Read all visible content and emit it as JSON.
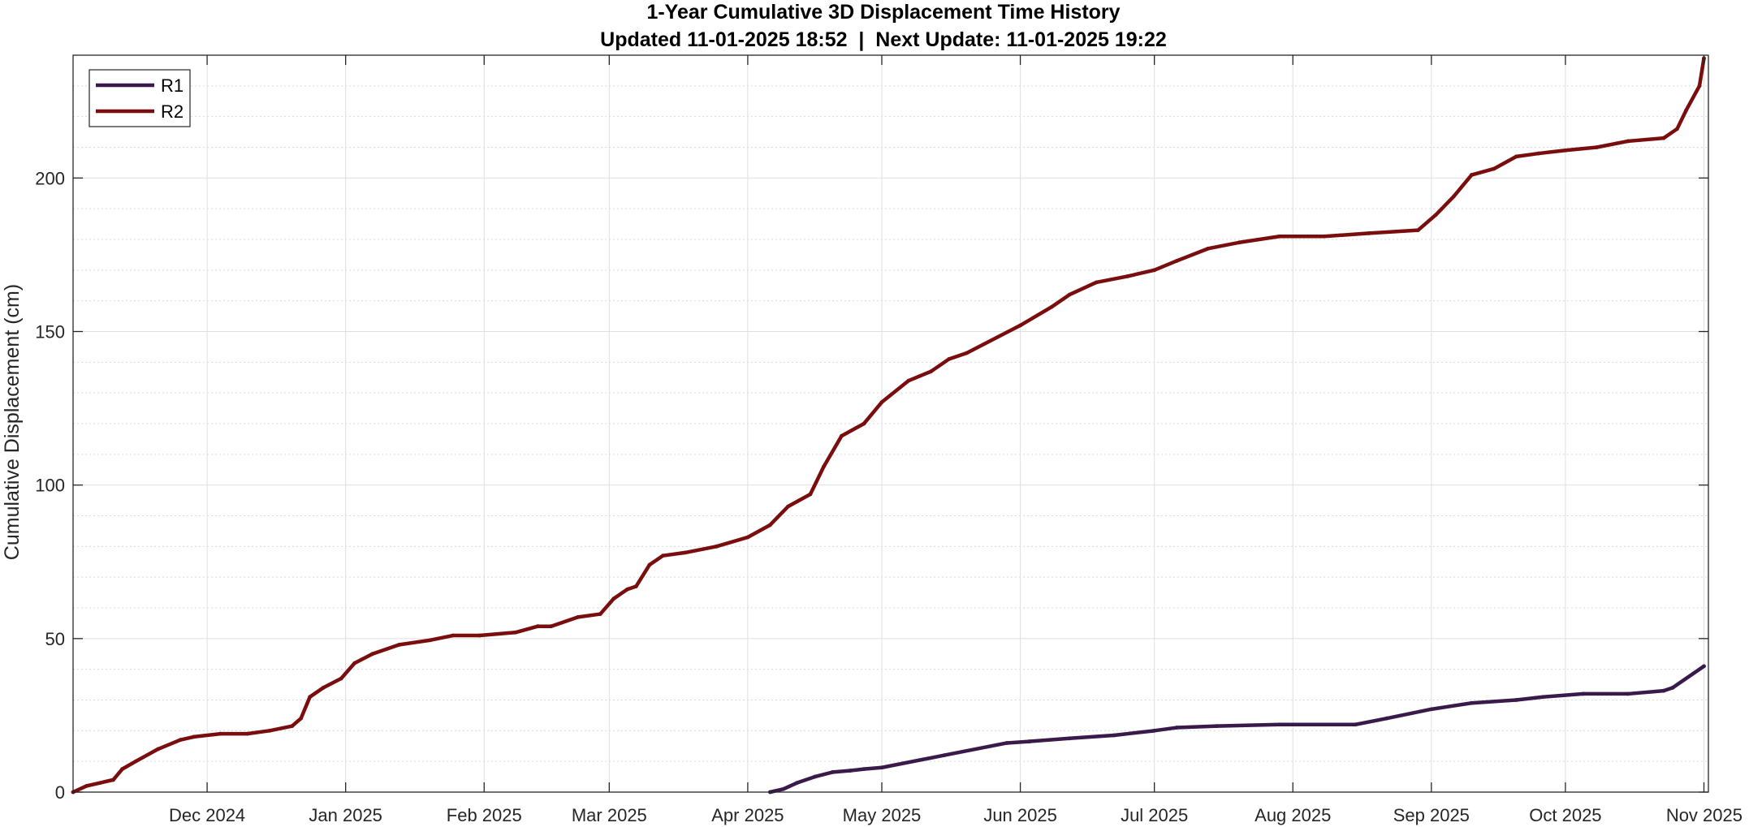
{
  "chart_data": {
    "type": "line",
    "title": "1-Year Cumulative 3D Displacement Time History",
    "subtitle": "Updated 11-01-2025 18:52  |  Next Update: 11-01-2025 19:22",
    "xlabel": "",
    "ylabel": "Cumulative Displacement (cm)",
    "xlim": [
      "2024-11-01",
      "2025-11-02"
    ],
    "ylim": [
      0,
      240
    ],
    "x_ticks": [
      {
        "date": "2024-12-01",
        "label": "Dec 2024"
      },
      {
        "date": "2025-01-01",
        "label": "Jan 2025"
      },
      {
        "date": "2025-02-01",
        "label": "Feb 2025"
      },
      {
        "date": "2025-03-01",
        "label": "Mar 2025"
      },
      {
        "date": "2025-04-01",
        "label": "Apr 2025"
      },
      {
        "date": "2025-05-01",
        "label": "May 2025"
      },
      {
        "date": "2025-06-01",
        "label": "Jun 2025"
      },
      {
        "date": "2025-07-01",
        "label": "Jul 2025"
      },
      {
        "date": "2025-08-01",
        "label": "Aug 2025"
      },
      {
        "date": "2025-09-01",
        "label": "Sep 2025"
      },
      {
        "date": "2025-10-01",
        "label": "Oct 2025"
      },
      {
        "date": "2025-11-01",
        "label": "Nov 2025"
      }
    ],
    "y_ticks": [
      0,
      50,
      100,
      150,
      200
    ],
    "y_minor_step": 10,
    "grid": true,
    "legend_position": "top-left",
    "series": [
      {
        "name": "R1",
        "color": "#3a1a4a",
        "points": [
          [
            "2025-04-06",
            0
          ],
          [
            "2025-04-09",
            1
          ],
          [
            "2025-04-12",
            3
          ],
          [
            "2025-04-16",
            5
          ],
          [
            "2025-04-20",
            6.5
          ],
          [
            "2025-04-24",
            7
          ],
          [
            "2025-04-27",
            7.5
          ],
          [
            "2025-05-01",
            8
          ],
          [
            "2025-05-15",
            12
          ],
          [
            "2025-05-29",
            16
          ],
          [
            "2025-06-03",
            16.5
          ],
          [
            "2025-06-12",
            17.5
          ],
          [
            "2025-06-22",
            18.5
          ],
          [
            "2025-07-01",
            20
          ],
          [
            "2025-07-06",
            21
          ],
          [
            "2025-07-15",
            21.5
          ],
          [
            "2025-07-29",
            22
          ],
          [
            "2025-08-15",
            22
          ],
          [
            "2025-08-22",
            24
          ],
          [
            "2025-09-01",
            27
          ],
          [
            "2025-09-10",
            29
          ],
          [
            "2025-09-20",
            30
          ],
          [
            "2025-09-26",
            31
          ],
          [
            "2025-10-05",
            32
          ],
          [
            "2025-10-15",
            32
          ],
          [
            "2025-10-23",
            33
          ],
          [
            "2025-10-25",
            34
          ],
          [
            "2025-11-01",
            41
          ]
        ]
      },
      {
        "name": "R2",
        "color": "#7a0d0d",
        "points": [
          [
            "2024-11-01",
            0
          ],
          [
            "2024-11-04",
            2
          ],
          [
            "2024-11-10",
            4
          ],
          [
            "2024-11-12",
            7.5
          ],
          [
            "2024-11-15",
            10
          ],
          [
            "2024-11-20",
            14
          ],
          [
            "2024-11-25",
            17
          ],
          [
            "2024-11-28",
            18
          ],
          [
            "2024-12-04",
            19
          ],
          [
            "2024-12-10",
            19
          ],
          [
            "2024-12-15",
            20
          ],
          [
            "2024-12-20",
            21.5
          ],
          [
            "2024-12-22",
            24
          ],
          [
            "2024-12-24",
            31
          ],
          [
            "2024-12-27",
            34
          ],
          [
            "2024-12-31",
            37
          ],
          [
            "2025-01-03",
            42
          ],
          [
            "2025-01-07",
            45
          ],
          [
            "2025-01-13",
            48
          ],
          [
            "2025-01-20",
            49.5
          ],
          [
            "2025-01-25",
            51
          ],
          [
            "2025-01-31",
            51
          ],
          [
            "2025-02-08",
            52
          ],
          [
            "2025-02-13",
            54
          ],
          [
            "2025-02-16",
            54
          ],
          [
            "2025-02-22",
            57
          ],
          [
            "2025-02-27",
            58
          ],
          [
            "2025-03-02",
            63
          ],
          [
            "2025-03-05",
            66
          ],
          [
            "2025-03-07",
            67
          ],
          [
            "2025-03-10",
            74
          ],
          [
            "2025-03-13",
            77
          ],
          [
            "2025-03-18",
            78
          ],
          [
            "2025-03-25",
            80
          ],
          [
            "2025-04-01",
            83
          ],
          [
            "2025-04-06",
            87
          ],
          [
            "2025-04-10",
            93
          ],
          [
            "2025-04-15",
            97
          ],
          [
            "2025-04-18",
            106
          ],
          [
            "2025-04-22",
            116
          ],
          [
            "2025-04-27",
            120
          ],
          [
            "2025-05-01",
            127
          ],
          [
            "2025-05-07",
            134
          ],
          [
            "2025-05-12",
            137
          ],
          [
            "2025-05-16",
            141
          ],
          [
            "2025-05-20",
            143
          ],
          [
            "2025-06-01",
            152
          ],
          [
            "2025-06-08",
            158
          ],
          [
            "2025-06-12",
            162
          ],
          [
            "2025-06-18",
            166
          ],
          [
            "2025-06-25",
            168
          ],
          [
            "2025-07-01",
            170
          ],
          [
            "2025-07-06",
            173
          ],
          [
            "2025-07-13",
            177
          ],
          [
            "2025-07-20",
            179
          ],
          [
            "2025-07-29",
            181
          ],
          [
            "2025-08-08",
            181
          ],
          [
            "2025-08-18",
            182
          ],
          [
            "2025-08-29",
            183
          ],
          [
            "2025-09-02",
            188
          ],
          [
            "2025-09-06",
            194
          ],
          [
            "2025-09-10",
            201
          ],
          [
            "2025-09-15",
            203
          ],
          [
            "2025-09-20",
            207
          ],
          [
            "2025-09-25",
            208
          ],
          [
            "2025-10-01",
            209
          ],
          [
            "2025-10-08",
            210
          ],
          [
            "2025-10-15",
            212
          ],
          [
            "2025-10-23",
            213
          ],
          [
            "2025-10-26",
            216
          ],
          [
            "2025-10-28",
            222
          ],
          [
            "2025-10-31",
            230
          ],
          [
            "2025-11-01",
            239
          ]
        ]
      }
    ]
  }
}
